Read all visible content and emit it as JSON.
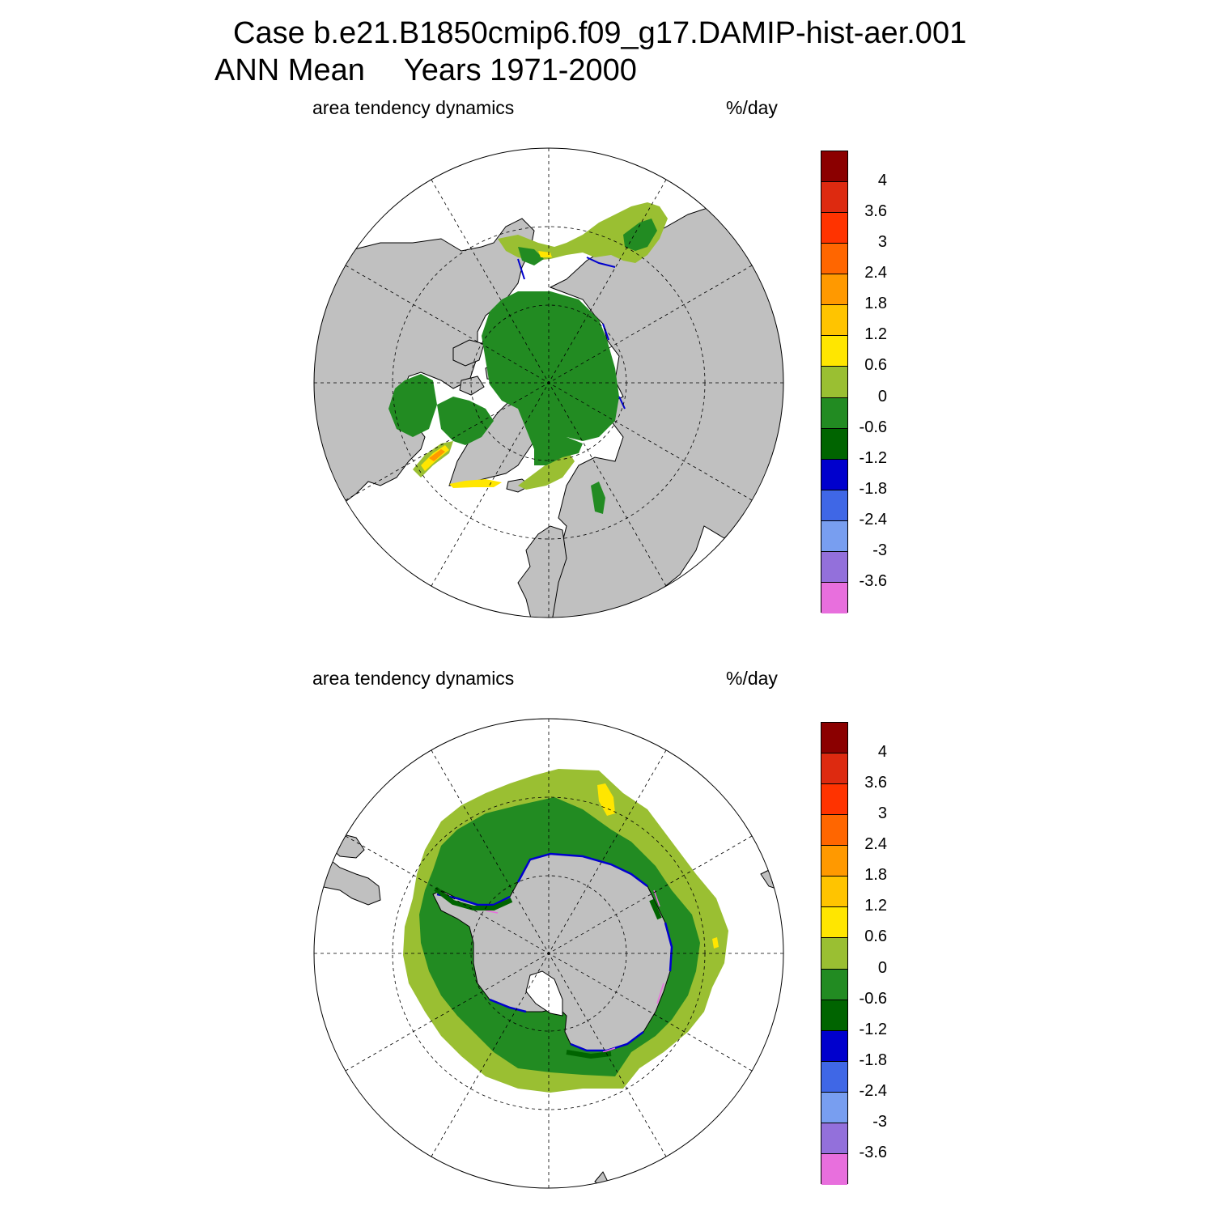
{
  "title": {
    "line1": "Case b.e21.B1850cmip6.f09_g17.DAMIP-hist-aer.001",
    "line2_left": "ANN Mean",
    "line2_right": "Years 1971-2000"
  },
  "panels": [
    {
      "hemisphere": "north",
      "left_label": "area tendency dynamics",
      "right_label": "%/day"
    },
    {
      "hemisphere": "south",
      "left_label": "area tendency dynamics",
      "right_label": "%/day"
    }
  ],
  "colorbar": {
    "levels": [
      "4",
      "3.6",
      "3",
      "2.4",
      "1.8",
      "1.2",
      "0.6",
      "0",
      "-0.6",
      "-1.2",
      "-1.8",
      "-2.4",
      "-3",
      "-3.6"
    ],
    "colors": [
      "#8b0000",
      "#dd2a10",
      "#ff3300",
      "#ff6600",
      "#ff9900",
      "#ffc400",
      "#ffe600",
      "#9abf32",
      "#228b22",
      "#006400",
      "#0000cd",
      "#3f67e6",
      "#789ef0",
      "#9370db",
      "#e86fdd"
    ]
  },
  "map_colors": {
    "land": "#c0c0c0",
    "ocean": "#ffffff",
    "graticule": "#000000"
  }
}
